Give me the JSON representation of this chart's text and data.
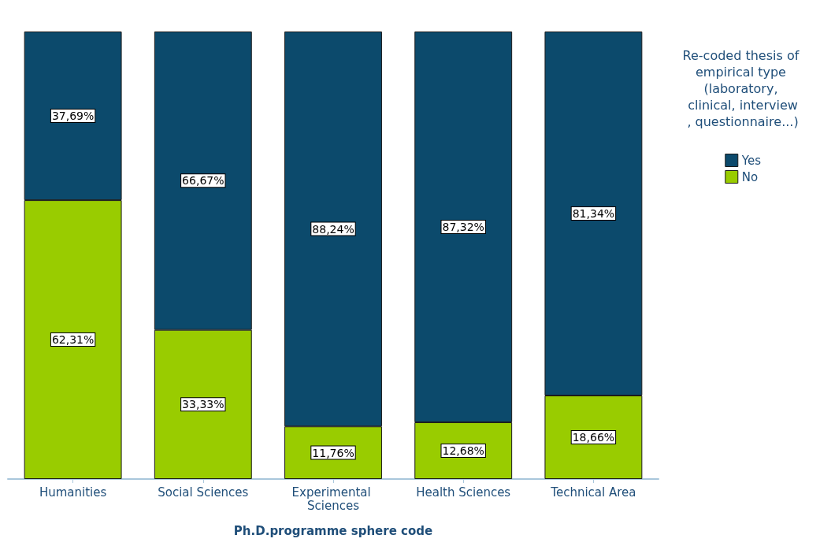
{
  "chart_data": {
    "type": "bar",
    "stacked": true,
    "xlabel": "Ph.D.programme sphere code",
    "legend_title": "Re-coded thesis of empirical type (laboratory, clinical, interview, questionnaire...)",
    "legend": "right",
    "tick_labels": "x",
    "categories": [
      "Humanities",
      "Social Sciences",
      "Experimental Sciences",
      "Health Sciences",
      "Technical Area"
    ],
    "series": [
      {
        "name": "No",
        "color": "#99cc00",
        "values": [
          62.31,
          33.33,
          11.76,
          12.68,
          18.66
        ],
        "value_labels": [
          "62,31%",
          "33,33%",
          "11,76%",
          "12,68%",
          "18,66%"
        ]
      },
      {
        "name": "Yes",
        "color": "#0c4a6c",
        "values": [
          37.69,
          66.67,
          88.24,
          87.32,
          81.34
        ],
        "value_labels": [
          "37,69%",
          "66,67%",
          "88,24%",
          "87,32%",
          "81,34%"
        ]
      }
    ]
  }
}
